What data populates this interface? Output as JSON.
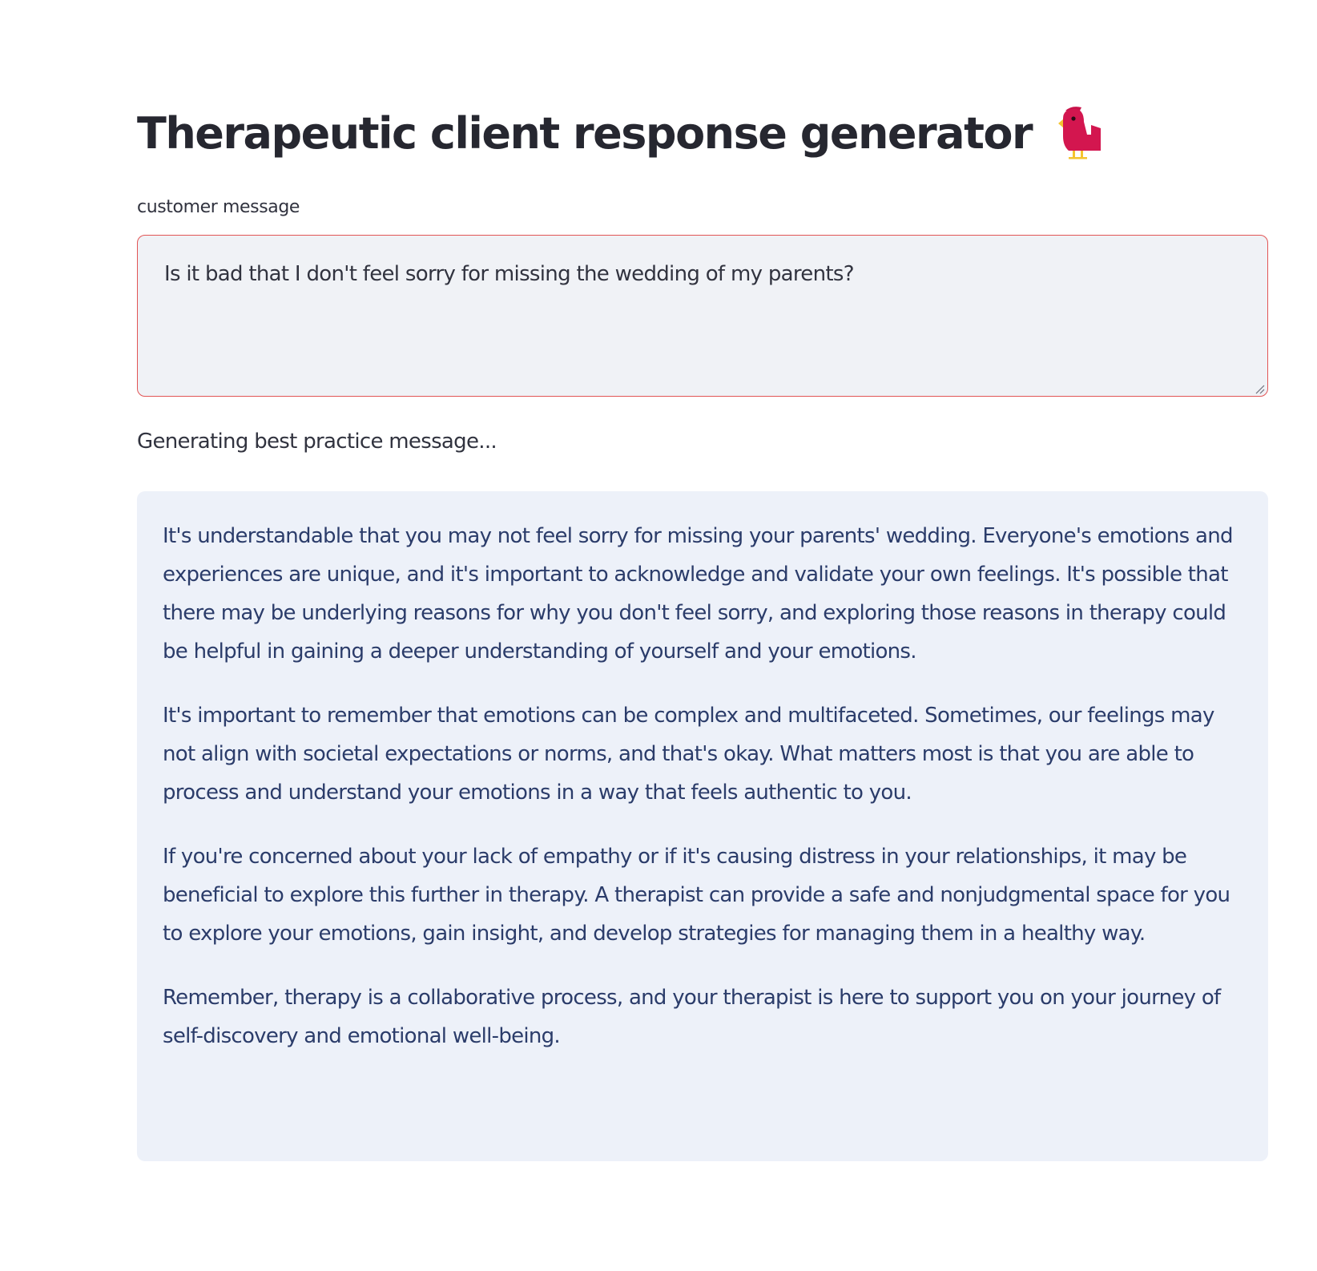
{
  "page": {
    "title": "Therapeutic client response generator",
    "title_icon": "bird-icon"
  },
  "input": {
    "label": "customer message",
    "value": "Is it bad that I don't feel sorry for missing the wedding of my parents?",
    "border_color": "#e25555",
    "background": "#f0f2f6"
  },
  "status": {
    "text": "Generating best practice message..."
  },
  "output": {
    "background": "#edf1f9",
    "text_color": "#2b3c6a",
    "paragraphs": [
      "It's understandable that you may not feel sorry for missing your parents' wedding. Everyone's emotions and experiences are unique, and it's important to acknowledge and validate your own feelings. It's possible that there may be underlying reasons for why you don't feel sorry, and exploring those reasons in therapy could be helpful in gaining a deeper understanding of yourself and your emotions.",
      "It's important to remember that emotions can be complex and multifaceted. Sometimes, our feelings may not align with societal expectations or norms, and that's okay. What matters most is that you are able to process and understand your emotions in a way that feels authentic to you.",
      "If you're concerned about your lack of empathy or if it's causing distress in your relationships, it may be beneficial to explore this further in therapy. A therapist can provide a safe and nonjudgmental space for you to explore your emotions, gain insight, and develop strategies for managing them in a healthy way.",
      "Remember, therapy is a collaborative process, and your therapist is here to support you on your journey of self-discovery and emotional well-being."
    ]
  }
}
